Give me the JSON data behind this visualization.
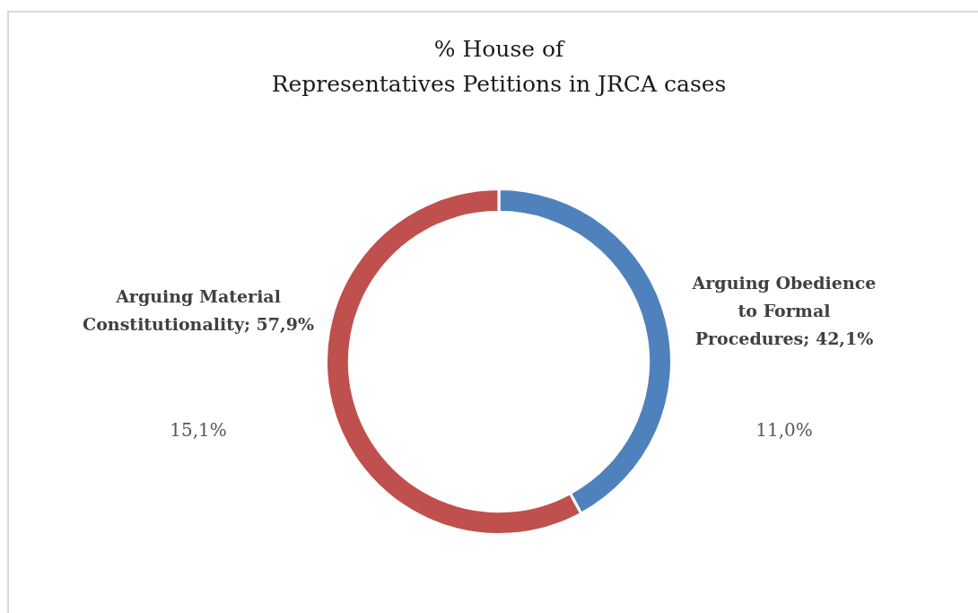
{
  "chart_data": {
    "type": "donut",
    "title": "% House of\nRepresentatives Petitions in JRCA cases",
    "categories": [
      "Arguing Obedience to Formal Procedures",
      "Arguing Material Constitutionality"
    ],
    "values": [
      42.1,
      57.9
    ],
    "colors": [
      "#4f81bd",
      "#c0504d"
    ],
    "value_labels": [
      "42,1%",
      "57,9%"
    ],
    "annotations": [
      "11,0%",
      "15,1%"
    ]
  }
}
